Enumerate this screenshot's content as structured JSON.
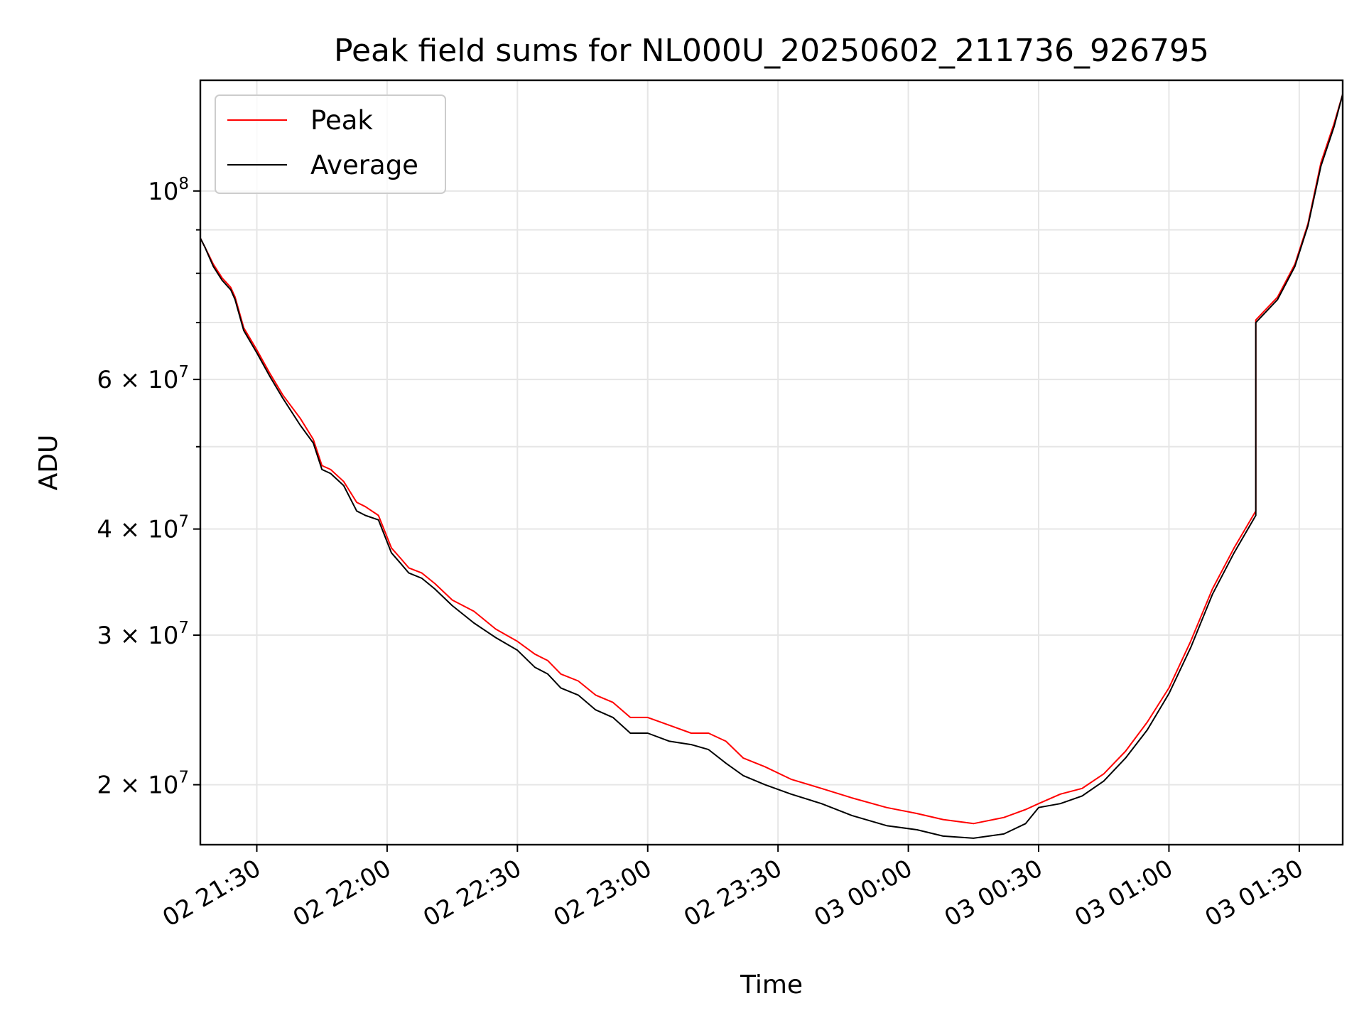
{
  "chart_data": {
    "type": "line",
    "title": "Peak field sums for NL000U_20250602_211736_926795",
    "xlabel": "Time",
    "ylabel": "ADU",
    "y_scale": "log",
    "grid": true,
    "legend_position": "top-left",
    "xlim": [
      "2025-06-02 21:17",
      "2025-06-03 01:40"
    ],
    "ylim": [
      17000000,
      135000000
    ],
    "x_ticks": [
      {
        "t": "2025-06-02 21:30",
        "label": "02 21:30"
      },
      {
        "t": "2025-06-02 22:00",
        "label": "02 22:00"
      },
      {
        "t": "2025-06-02 22:30",
        "label": "02 22:30"
      },
      {
        "t": "2025-06-02 23:00",
        "label": "02 23:00"
      },
      {
        "t": "2025-06-02 23:30",
        "label": "02 23:30"
      },
      {
        "t": "2025-06-03 00:00",
        "label": "03 00:00"
      },
      {
        "t": "2025-06-03 00:30",
        "label": "03 00:30"
      },
      {
        "t": "2025-06-03 01:00",
        "label": "03 01:00"
      },
      {
        "t": "2025-06-03 01:30",
        "label": "03 01:30"
      }
    ],
    "y_ticks_major": [
      {
        "value": 100000000,
        "base": "10",
        "exp": "8"
      },
      {
        "value": 60000000,
        "base": "6 × 10",
        "exp": "7"
      },
      {
        "value": 40000000,
        "base": "4 × 10",
        "exp": "7"
      },
      {
        "value": 30000000,
        "base": "3 × 10",
        "exp": "7"
      },
      {
        "value": 20000000,
        "base": "2 × 10",
        "exp": "7"
      }
    ],
    "y_ticks_minor": [
      50000000,
      70000000,
      80000000,
      90000000
    ],
    "series": [
      {
        "name": "Peak",
        "color": "#ff0000",
        "x": [
          "2025-06-02 21:17",
          "2025-06-02 21:18",
          "2025-06-02 21:20",
          "2025-06-02 21:22",
          "2025-06-02 21:24",
          "2025-06-02 21:25",
          "2025-06-02 21:27",
          "2025-06-02 21:30",
          "2025-06-02 21:33",
          "2025-06-02 21:36",
          "2025-06-02 21:40",
          "2025-06-02 21:43",
          "2025-06-02 21:45",
          "2025-06-02 21:47",
          "2025-06-02 21:50",
          "2025-06-02 21:53",
          "2025-06-02 21:55",
          "2025-06-02 21:58",
          "2025-06-02 22:01",
          "2025-06-02 22:03",
          "2025-06-02 22:05",
          "2025-06-02 22:08",
          "2025-06-02 22:11",
          "2025-06-02 22:15",
          "2025-06-02 22:20",
          "2025-06-02 22:25",
          "2025-06-02 22:30",
          "2025-06-02 22:34",
          "2025-06-02 22:37",
          "2025-06-02 22:40",
          "2025-06-02 22:44",
          "2025-06-02 22:48",
          "2025-06-02 22:52",
          "2025-06-02 22:56",
          "2025-06-02 23:00",
          "2025-06-02 23:05",
          "2025-06-02 23:10",
          "2025-06-02 23:14",
          "2025-06-02 23:18",
          "2025-06-02 23:22",
          "2025-06-02 23:27",
          "2025-06-02 23:33",
          "2025-06-02 23:40",
          "2025-06-02 23:47",
          "2025-06-02 23:55",
          "2025-06-03 00:02",
          "2025-06-03 00:08",
          "2025-06-03 00:15",
          "2025-06-03 00:22",
          "2025-06-03 00:27",
          "2025-06-03 00:30",
          "2025-06-03 00:35",
          "2025-06-03 00:40",
          "2025-06-03 00:45",
          "2025-06-03 00:50",
          "2025-06-03 00:55",
          "2025-06-03 01:00",
          "2025-06-03 01:05",
          "2025-06-03 01:10",
          "2025-06-03 01:15",
          "2025-06-03 01:20",
          "2025-06-03 01:20",
          "2025-06-03 01:25",
          "2025-06-03 01:29",
          "2025-06-03 01:32",
          "2025-06-03 01:35",
          "2025-06-03 01:38",
          "2025-06-03 01:40"
        ],
        "values": [
          88000000,
          86000000,
          82000000,
          79000000,
          77000000,
          75000000,
          69000000,
          65000000,
          61000000,
          57500000,
          54000000,
          51000000,
          47500000,
          47000000,
          45500000,
          43000000,
          42500000,
          41500000,
          38000000,
          37000000,
          36000000,
          35500000,
          34500000,
          33000000,
          32000000,
          30500000,
          29500000,
          28500000,
          28000000,
          27000000,
          26500000,
          25500000,
          25000000,
          24000000,
          24000000,
          23500000,
          23000000,
          23000000,
          22500000,
          21500000,
          21000000,
          20300000,
          19800000,
          19300000,
          18800000,
          18500000,
          18200000,
          18000000,
          18300000,
          18700000,
          19000000,
          19500000,
          19800000,
          20600000,
          21900000,
          23700000,
          26000000,
          29500000,
          34000000,
          38000000,
          42000000,
          70500000,
          75000000,
          82000000,
          91500000,
          108000000,
          120000000,
          130000000
        ]
      },
      {
        "name": "Average",
        "color": "#000000",
        "x": [
          "2025-06-02 21:17",
          "2025-06-02 21:18",
          "2025-06-02 21:20",
          "2025-06-02 21:22",
          "2025-06-02 21:24",
          "2025-06-02 21:25",
          "2025-06-02 21:27",
          "2025-06-02 21:30",
          "2025-06-02 21:33",
          "2025-06-02 21:36",
          "2025-06-02 21:40",
          "2025-06-02 21:43",
          "2025-06-02 21:45",
          "2025-06-02 21:47",
          "2025-06-02 21:50",
          "2025-06-02 21:53",
          "2025-06-02 21:55",
          "2025-06-02 21:58",
          "2025-06-02 22:01",
          "2025-06-02 22:03",
          "2025-06-02 22:05",
          "2025-06-02 22:08",
          "2025-06-02 22:11",
          "2025-06-02 22:15",
          "2025-06-02 22:20",
          "2025-06-02 22:25",
          "2025-06-02 22:30",
          "2025-06-02 22:34",
          "2025-06-02 22:37",
          "2025-06-02 22:40",
          "2025-06-02 22:44",
          "2025-06-02 22:48",
          "2025-06-02 22:52",
          "2025-06-02 22:56",
          "2025-06-02 23:00",
          "2025-06-02 23:05",
          "2025-06-02 23:10",
          "2025-06-02 23:14",
          "2025-06-02 23:18",
          "2025-06-02 23:22",
          "2025-06-02 23:27",
          "2025-06-02 23:33",
          "2025-06-02 23:40",
          "2025-06-02 23:47",
          "2025-06-02 23:55",
          "2025-06-03 00:02",
          "2025-06-03 00:08",
          "2025-06-03 00:15",
          "2025-06-03 00:22",
          "2025-06-03 00:27",
          "2025-06-03 00:30",
          "2025-06-03 00:35",
          "2025-06-03 00:40",
          "2025-06-03 00:45",
          "2025-06-03 00:50",
          "2025-06-03 00:55",
          "2025-06-03 01:00",
          "2025-06-03 01:05",
          "2025-06-03 01:10",
          "2025-06-03 01:15",
          "2025-06-03 01:20",
          "2025-06-03 01:20",
          "2025-06-03 01:25",
          "2025-06-03 01:29",
          "2025-06-03 01:32",
          "2025-06-03 01:35",
          "2025-06-03 01:38",
          "2025-06-03 01:40"
        ],
        "values": [
          88000000,
          86000000,
          81500000,
          78500000,
          76500000,
          74500000,
          68500000,
          64500000,
          60500000,
          57000000,
          53000000,
          50500000,
          47000000,
          46500000,
          45000000,
          42000000,
          41500000,
          41000000,
          37500000,
          36500000,
          35500000,
          35000000,
          34000000,
          32500000,
          31000000,
          29800000,
          28800000,
          27500000,
          27000000,
          26000000,
          25500000,
          24500000,
          24000000,
          23000000,
          23000000,
          22500000,
          22300000,
          22000000,
          21200000,
          20500000,
          20000000,
          19500000,
          19000000,
          18400000,
          17900000,
          17700000,
          17400000,
          17300000,
          17500000,
          18000000,
          18800000,
          19000000,
          19400000,
          20200000,
          21500000,
          23200000,
          25600000,
          29000000,
          33500000,
          37500000,
          41500000,
          70000000,
          74500000,
          81500000,
          91000000,
          107000000,
          119000000,
          130000000
        ]
      }
    ]
  }
}
